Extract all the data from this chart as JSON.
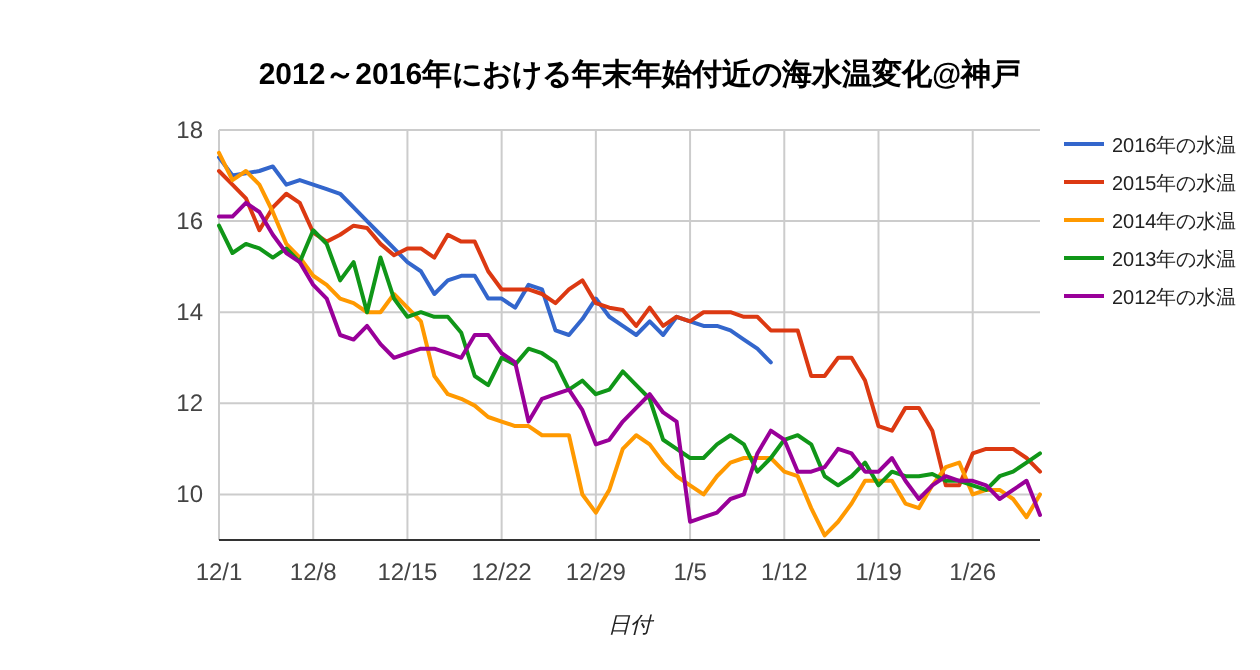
{
  "chart_data": {
    "type": "line",
    "title": "2012～2016年における年末年始付近の海水温変化@神戸",
    "xlabel": "日付",
    "categories": [
      "12/1",
      null,
      null,
      null,
      null,
      null,
      null,
      "12/8",
      null,
      null,
      null,
      null,
      null,
      null,
      "12/15",
      null,
      null,
      null,
      null,
      null,
      null,
      "12/22",
      null,
      null,
      null,
      null,
      null,
      null,
      "12/29",
      null,
      null,
      null,
      null,
      null,
      null,
      "1/5",
      null,
      null,
      null,
      null,
      null,
      null,
      "1/12",
      null,
      null,
      null,
      null,
      null,
      null,
      "1/19",
      null,
      null,
      null,
      null,
      null,
      null,
      "1/26",
      null,
      null,
      null,
      null,
      null
    ],
    "ylim": [
      9,
      18
    ],
    "yticks": [
      10,
      12,
      14,
      16,
      18
    ],
    "grid": true,
    "legend": "right",
    "marker": "none",
    "line_style": "solid",
    "series": [
      {
        "name": "2016年の水温",
        "color": "#3366cc",
        "values": [
          17.4,
          17.0,
          17.05,
          17.1,
          17.2,
          16.8,
          16.9,
          16.8,
          16.7,
          16.6,
          16.3,
          16.0,
          15.7,
          15.4,
          15.1,
          14.9,
          14.4,
          14.7,
          14.8,
          14.8,
          14.3,
          14.3,
          14.1,
          14.6,
          14.5,
          13.6,
          13.5,
          13.85,
          14.3,
          13.9,
          13.7,
          13.5,
          13.8,
          13.5,
          13.9,
          13.8,
          13.7,
          13.7,
          13.6,
          13.4,
          13.2,
          12.9,
          null,
          null,
          null,
          null,
          null,
          null,
          null,
          null,
          null,
          null,
          null,
          null,
          null,
          null,
          null,
          null,
          null,
          null,
          null,
          null
        ]
      },
      {
        "name": "2015年の水温",
        "color": "#dc3912",
        "values": [
          17.1,
          16.8,
          16.5,
          15.8,
          16.3,
          16.6,
          16.4,
          15.75,
          15.55,
          15.7,
          15.9,
          15.85,
          15.5,
          15.25,
          15.4,
          15.4,
          15.2,
          15.7,
          15.55,
          15.55,
          14.9,
          14.5,
          14.5,
          14.5,
          14.4,
          14.2,
          14.5,
          14.7,
          14.2,
          14.1,
          14.05,
          13.7,
          14.1,
          13.7,
          13.9,
          13.8,
          14.0,
          14.0,
          14.0,
          13.9,
          13.9,
          13.6,
          13.6,
          13.6,
          12.6,
          12.6,
          13.0,
          13.0,
          12.5,
          11.5,
          11.4,
          11.9,
          11.9,
          11.4,
          10.2,
          10.2,
          10.9,
          11.0,
          11.0,
          11.0,
          10.8,
          10.5
        ]
      },
      {
        "name": "2014年の水温",
        "color": "#ff9900",
        "values": [
          17.5,
          16.9,
          17.1,
          16.8,
          16.2,
          15.5,
          15.2,
          14.8,
          14.6,
          14.3,
          14.2,
          14.0,
          14.0,
          14.4,
          14.1,
          13.8,
          12.6,
          12.2,
          12.1,
          11.95,
          11.7,
          11.6,
          11.5,
          11.5,
          11.3,
          11.3,
          11.3,
          10.0,
          9.6,
          10.1,
          11.0,
          11.3,
          11.1,
          10.7,
          10.4,
          10.2,
          10.0,
          10.4,
          10.7,
          10.8,
          10.8,
          10.8,
          10.5,
          10.4,
          9.7,
          9.1,
          9.4,
          9.8,
          10.3,
          10.3,
          10.3,
          9.8,
          9.7,
          10.2,
          10.6,
          10.7,
          10.0,
          10.1,
          10.1,
          9.9,
          9.5,
          10.0
        ]
      },
      {
        "name": "2013年の水温",
        "color": "#109618",
        "values": [
          15.9,
          15.3,
          15.5,
          15.4,
          15.2,
          15.4,
          15.1,
          15.8,
          15.5,
          14.7,
          15.1,
          14.0,
          15.2,
          14.3,
          13.9,
          14.0,
          13.9,
          13.9,
          13.55,
          12.6,
          12.4,
          13.0,
          12.85,
          13.2,
          13.1,
          12.9,
          12.3,
          12.5,
          12.2,
          12.3,
          12.7,
          12.4,
          12.1,
          11.2,
          11.0,
          10.8,
          10.8,
          11.1,
          11.3,
          11.1,
          10.5,
          10.8,
          11.2,
          11.3,
          11.1,
          10.4,
          10.2,
          10.4,
          10.7,
          10.2,
          10.5,
          10.4,
          10.4,
          10.45,
          10.3,
          10.3,
          10.2,
          10.1,
          10.4,
          10.5,
          10.7,
          10.9
        ]
      },
      {
        "name": "2012年の水温",
        "color": "#990099",
        "values": [
          16.1,
          16.1,
          16.4,
          16.2,
          15.7,
          15.3,
          15.1,
          14.6,
          14.3,
          13.5,
          13.4,
          13.7,
          13.3,
          13.0,
          13.1,
          13.2,
          13.2,
          13.1,
          13.0,
          13.5,
          13.5,
          13.1,
          12.9,
          11.6,
          12.1,
          12.2,
          12.3,
          11.85,
          11.1,
          11.2,
          11.6,
          11.9,
          12.2,
          11.8,
          11.6,
          9.4,
          9.5,
          9.6,
          9.9,
          10.0,
          10.9,
          11.4,
          11.2,
          10.5,
          10.5,
          10.6,
          11.0,
          10.9,
          10.5,
          10.5,
          10.8,
          10.3,
          9.9,
          10.2,
          10.4,
          10.3,
          10.3,
          10.2,
          9.9,
          10.1,
          10.3,
          9.55
        ]
      }
    ]
  }
}
